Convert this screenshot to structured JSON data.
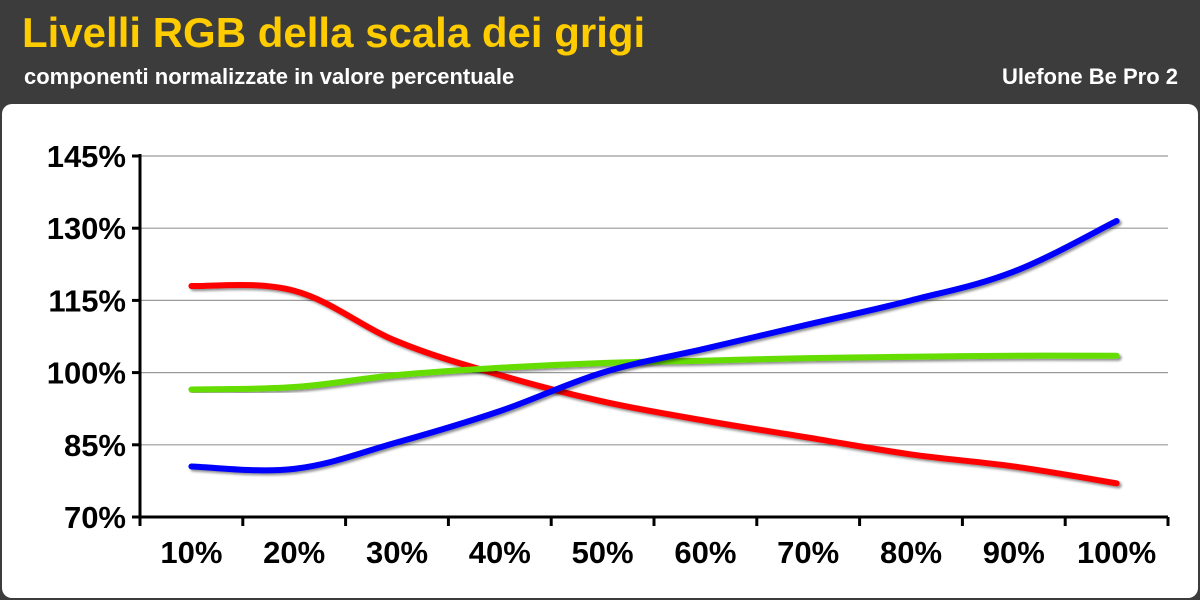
{
  "header": {
    "title": "Livelli RGB della scala dei grigi",
    "subtitle": "componenti normalizzate in valore percentuale",
    "device": "Ulefone Be Pro 2"
  },
  "chart_data": {
    "type": "line",
    "title": "Livelli RGB della scala dei grigi",
    "subtitle": "componenti normalizzate in valore percentuale",
    "categories": [
      "10%",
      "20%",
      "30%",
      "40%",
      "50%",
      "60%",
      "70%",
      "80%",
      "90%",
      "100%"
    ],
    "y_ticks": [
      "70%",
      "85%",
      "100%",
      "115%",
      "130%",
      "145%"
    ],
    "ylim": [
      70,
      145
    ],
    "grid": true,
    "series": [
      {
        "color": "#ff0000",
        "values": [
          118,
          117,
          106.5,
          99.5,
          94,
          90,
          86.5,
          83,
          80.5,
          77
        ]
      },
      {
        "color": "#66dd00",
        "values": [
          96.5,
          97,
          99.5,
          101,
          102,
          102.5,
          103,
          103.3,
          103.5,
          103.5
        ]
      },
      {
        "color": "#0000ff",
        "values": [
          80.5,
          80,
          85.5,
          92,
          100,
          105,
          110,
          115,
          121,
          131.5
        ]
      }
    ]
  }
}
